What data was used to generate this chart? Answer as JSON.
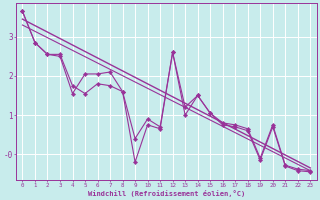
{
  "xlabel": "Windchill (Refroidissement éolien,°C)",
  "bg_color": "#c8ecec",
  "line_color": "#993399",
  "grid_color": "#ffffff",
  "xlim": [
    -0.5,
    23.5
  ],
  "ylim": [
    -0.65,
    3.85
  ],
  "yticks": [
    0,
    1,
    2,
    3
  ],
  "ytick_labels": [
    "-0",
    "1",
    "2",
    "3"
  ],
  "series1_x": [
    0,
    1,
    2,
    3,
    4,
    5,
    6,
    7,
    8,
    9,
    10,
    11,
    12,
    13,
    14,
    15,
    16,
    17,
    18,
    19,
    20,
    21,
    22,
    23
  ],
  "series1_y": [
    3.65,
    2.85,
    2.55,
    2.55,
    1.75,
    1.55,
    1.8,
    1.75,
    1.6,
    -0.2,
    0.75,
    0.65,
    2.6,
    1.0,
    1.5,
    1.05,
    0.8,
    0.75,
    0.65,
    -0.1,
    0.75,
    -0.28,
    -0.38,
    -0.42
  ],
  "series2_x": [
    0,
    1,
    2,
    3,
    4,
    5,
    6,
    7,
    8,
    9,
    10,
    11,
    12,
    13,
    14,
    15,
    16,
    17,
    18,
    19,
    20,
    21,
    22,
    23
  ],
  "series2_y": [
    3.65,
    2.85,
    2.55,
    2.5,
    1.55,
    2.05,
    2.05,
    2.1,
    1.6,
    0.4,
    0.9,
    0.7,
    2.6,
    1.2,
    1.5,
    1.05,
    0.75,
    0.7,
    0.6,
    -0.15,
    0.7,
    -0.3,
    -0.42,
    -0.45
  ],
  "trend1_x": [
    0,
    23
  ],
  "trend1_y": [
    3.45,
    -0.35
  ],
  "trend2_x": [
    0,
    23
  ],
  "trend2_y": [
    3.3,
    -0.42
  ]
}
